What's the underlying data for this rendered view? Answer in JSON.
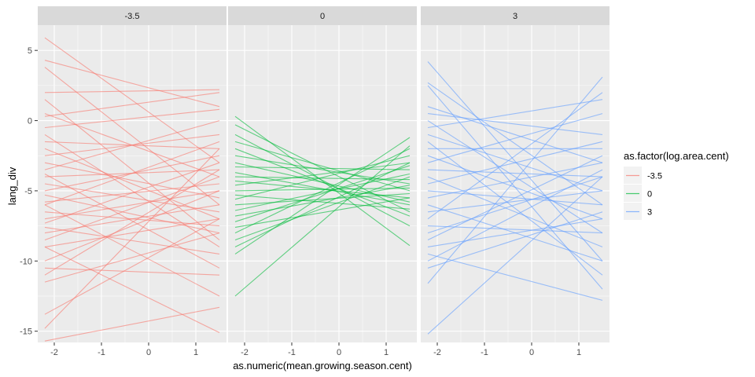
{
  "chart_data": {
    "type": "line",
    "xlabel": "as.numeric(mean.growing.season.cent)",
    "ylabel": "lang_div",
    "xlim": [
      -2.35,
      1.65
    ],
    "ylim": [
      -15.8,
      6.8
    ],
    "x_ticks": [
      {
        "value": -2,
        "label": "-2"
      },
      {
        "value": -1,
        "label": "-1"
      },
      {
        "value": 0,
        "label": "0"
      },
      {
        "value": 1,
        "label": "1"
      }
    ],
    "y_ticks": [
      {
        "value": 5,
        "label": "5"
      },
      {
        "value": 0,
        "label": "0"
      },
      {
        "value": -5,
        "label": "-5"
      },
      {
        "value": -10,
        "label": "-10"
      },
      {
        "value": -15,
        "label": "-15"
      }
    ],
    "x_range_of_lines": [
      -2.2,
      1.5
    ],
    "grid": true,
    "facets": [
      {
        "strip": "-3.5",
        "color": "#F8766D"
      },
      {
        "strip": "0",
        "color": "#00BA38"
      },
      {
        "strip": "3",
        "color": "#619CFF"
      }
    ],
    "legend": {
      "title": "as.factor(log.area.cent)",
      "position": "right",
      "entries": [
        {
          "label": "-3.5",
          "color": "#F8766D"
        },
        {
          "label": "0",
          "color": "#00BA38"
        },
        {
          "label": "3",
          "color": "#619CFF"
        }
      ]
    },
    "series": [
      {
        "facet": 0,
        "x": [
          -2.2,
          1.5
        ],
        "y": [
          5.9,
          -3.0
        ]
      },
      {
        "facet": 0,
        "x": [
          -2.2,
          1.5
        ],
        "y": [
          4.3,
          1.0
        ]
      },
      {
        "facet": 0,
        "x": [
          -2.2,
          1.5
        ],
        "y": [
          3.8,
          -6.0
        ]
      },
      {
        "facet": 0,
        "x": [
          -2.2,
          1.5
        ],
        "y": [
          2.0,
          2.2
        ]
      },
      {
        "facet": 0,
        "x": [
          -2.2,
          1.5
        ],
        "y": [
          1.5,
          -8.5
        ]
      },
      {
        "facet": 0,
        "x": [
          -2.2,
          1.5
        ],
        "y": [
          0.5,
          -4.0
        ]
      },
      {
        "facet": 0,
        "x": [
          -2.2,
          1.5
        ],
        "y": [
          0.3,
          2.0
        ]
      },
      {
        "facet": 0,
        "x": [
          -2.2,
          1.5
        ],
        "y": [
          -0.5,
          0.8
        ]
      },
      {
        "facet": 0,
        "x": [
          -2.2,
          1.5
        ],
        "y": [
          -1.0,
          -9.0
        ]
      },
      {
        "facet": 0,
        "x": [
          -2.2,
          1.5
        ],
        "y": [
          -1.5,
          -2.0
        ]
      },
      {
        "facet": 0,
        "x": [
          -2.2,
          1.5
        ],
        "y": [
          -2.0,
          -7.0
        ]
      },
      {
        "facet": 0,
        "x": [
          -2.2,
          1.5
        ],
        "y": [
          -2.5,
          -1.0
        ]
      },
      {
        "facet": 0,
        "x": [
          -2.2,
          1.5
        ],
        "y": [
          -3.0,
          -5.5
        ]
      },
      {
        "facet": 0,
        "x": [
          -2.2,
          1.5
        ],
        "y": [
          -3.5,
          0.0
        ]
      },
      {
        "facet": 0,
        "x": [
          -2.2,
          1.5
        ],
        "y": [
          -3.8,
          -10.5
        ]
      },
      {
        "facet": 0,
        "x": [
          -2.2,
          1.5
        ],
        "y": [
          -4.0,
          -3.5
        ]
      },
      {
        "facet": 0,
        "x": [
          -2.2,
          1.5
        ],
        "y": [
          -4.5,
          -6.5
        ]
      },
      {
        "facet": 0,
        "x": [
          -2.2,
          1.5
        ],
        "y": [
          -5.0,
          -2.5
        ]
      },
      {
        "facet": 0,
        "x": [
          -2.2,
          1.5
        ],
        "y": [
          -5.3,
          -8.0
        ]
      },
      {
        "facet": 0,
        "x": [
          -2.2,
          1.5
        ],
        "y": [
          -5.8,
          -4.5
        ]
      },
      {
        "facet": 0,
        "x": [
          -2.2,
          1.5
        ],
        "y": [
          -6.0,
          -1.5
        ]
      },
      {
        "facet": 0,
        "x": [
          -2.2,
          1.5
        ],
        "y": [
          -6.5,
          -7.5
        ]
      },
      {
        "facet": 0,
        "x": [
          -2.2,
          1.5
        ],
        "y": [
          -7.0,
          -5.0
        ]
      },
      {
        "facet": 0,
        "x": [
          -2.2,
          1.5
        ],
        "y": [
          -7.3,
          -3.0
        ]
      },
      {
        "facet": 0,
        "x": [
          -2.2,
          1.5
        ],
        "y": [
          -7.6,
          -9.5
        ]
      },
      {
        "facet": 0,
        "x": [
          -2.2,
          1.5
        ],
        "y": [
          -8.0,
          -6.0
        ]
      },
      {
        "facet": 0,
        "x": [
          -2.2,
          1.5
        ],
        "y": [
          -8.5,
          -4.0
        ]
      },
      {
        "facet": 0,
        "x": [
          -2.2,
          1.5
        ],
        "y": [
          -9.0,
          -7.0
        ]
      },
      {
        "facet": 0,
        "x": [
          -2.2,
          1.5
        ],
        "y": [
          -10.0,
          -5.0
        ]
      },
      {
        "facet": 0,
        "x": [
          -2.2,
          1.5
        ],
        "y": [
          -10.5,
          -11.0
        ]
      },
      {
        "facet": 0,
        "x": [
          -2.2,
          1.5
        ],
        "y": [
          -11.0,
          -3.5
        ]
      },
      {
        "facet": 0,
        "x": [
          -2.2,
          1.5
        ],
        "y": [
          -11.5,
          -8.0
        ]
      },
      {
        "facet": 0,
        "x": [
          -2.2,
          1.5
        ],
        "y": [
          -13.8,
          -7.0
        ]
      },
      {
        "facet": 0,
        "x": [
          -2.2,
          1.5
        ],
        "y": [
          -14.8,
          -2.0
        ]
      },
      {
        "facet": 0,
        "x": [
          -2.2,
          1.5
        ],
        "y": [
          -15.7,
          -13.3
        ]
      },
      {
        "facet": 0,
        "x": [
          -2.2,
          1.5
        ],
        "y": [
          -9.0,
          -15.1
        ]
      },
      {
        "facet": 0,
        "x": [
          -2.2,
          1.5
        ],
        "y": [
          -6.0,
          -12.5
        ]
      },
      {
        "facet": 1,
        "x": [
          -2.2,
          1.5
        ],
        "y": [
          0.3,
          -8.9
        ]
      },
      {
        "facet": 1,
        "x": [
          -2.2,
          1.5
        ],
        "y": [
          -0.3,
          -6.5
        ]
      },
      {
        "facet": 1,
        "x": [
          -2.2,
          1.5
        ],
        "y": [
          -1.0,
          -7.5
        ]
      },
      {
        "facet": 1,
        "x": [
          -2.2,
          1.5
        ],
        "y": [
          -1.5,
          -5.0
        ]
      },
      {
        "facet": 1,
        "x": [
          -2.2,
          1.5
        ],
        "y": [
          -2.0,
          -6.8
        ]
      },
      {
        "facet": 1,
        "x": [
          -2.2,
          1.5
        ],
        "y": [
          -2.5,
          -4.5
        ]
      },
      {
        "facet": 1,
        "x": [
          -2.2,
          1.5
        ],
        "y": [
          -3.0,
          -5.8
        ]
      },
      {
        "facet": 1,
        "x": [
          -2.2,
          1.5
        ],
        "y": [
          -3.3,
          -3.5
        ]
      },
      {
        "facet": 1,
        "x": [
          -2.2,
          1.5
        ],
        "y": [
          -3.7,
          -6.0
        ]
      },
      {
        "facet": 1,
        "x": [
          -2.2,
          1.5
        ],
        "y": [
          -4.0,
          -4.2
        ]
      },
      {
        "facet": 1,
        "x": [
          -2.2,
          1.5
        ],
        "y": [
          -4.3,
          -5.5
        ]
      },
      {
        "facet": 1,
        "x": [
          -2.2,
          1.5
        ],
        "y": [
          -4.6,
          -3.0
        ]
      },
      {
        "facet": 1,
        "x": [
          -2.2,
          1.5
        ],
        "y": [
          -5.0,
          -4.8
        ]
      },
      {
        "facet": 1,
        "x": [
          -2.2,
          1.5
        ],
        "y": [
          -5.3,
          -6.3
        ]
      },
      {
        "facet": 1,
        "x": [
          -2.2,
          1.5
        ],
        "y": [
          -5.6,
          -2.5
        ]
      },
      {
        "facet": 1,
        "x": [
          -2.2,
          1.5
        ],
        "y": [
          -6.0,
          -5.2
        ]
      },
      {
        "facet": 1,
        "x": [
          -2.2,
          1.5
        ],
        "y": [
          -6.4,
          -3.8
        ]
      },
      {
        "facet": 1,
        "x": [
          -2.2,
          1.5
        ],
        "y": [
          -6.8,
          -4.6
        ]
      },
      {
        "facet": 1,
        "x": [
          -2.2,
          1.5
        ],
        "y": [
          -7.2,
          -3.2
        ]
      },
      {
        "facet": 1,
        "x": [
          -2.2,
          1.5
        ],
        "y": [
          -7.6,
          -5.5
        ]
      },
      {
        "facet": 1,
        "x": [
          -2.2,
          1.5
        ],
        "y": [
          -8.0,
          -2.0
        ]
      },
      {
        "facet": 1,
        "x": [
          -2.2,
          1.5
        ],
        "y": [
          -8.5,
          -4.0
        ]
      },
      {
        "facet": 1,
        "x": [
          -2.2,
          1.5
        ],
        "y": [
          -9.0,
          -3.0
        ]
      },
      {
        "facet": 1,
        "x": [
          -2.2,
          1.5
        ],
        "y": [
          -9.5,
          -1.2
        ]
      },
      {
        "facet": 1,
        "x": [
          -2.2,
          1.5
        ],
        "y": [
          -12.5,
          -1.8
        ]
      },
      {
        "facet": 2,
        "x": [
          -2.2,
          1.5
        ],
        "y": [
          4.2,
          -10.0
        ]
      },
      {
        "facet": 2,
        "x": [
          -2.2,
          1.5
        ],
        "y": [
          2.7,
          -6.0
        ]
      },
      {
        "facet": 2,
        "x": [
          -2.2,
          1.5
        ],
        "y": [
          2.5,
          -12.0
        ]
      },
      {
        "facet": 2,
        "x": [
          -2.2,
          1.5
        ],
        "y": [
          1.0,
          -3.0
        ]
      },
      {
        "facet": 2,
        "x": [
          -2.2,
          1.5
        ],
        "y": [
          0.5,
          -1.0
        ]
      },
      {
        "facet": 2,
        "x": [
          -2.2,
          1.5
        ],
        "y": [
          0.0,
          -8.0
        ]
      },
      {
        "facet": 2,
        "x": [
          -2.2,
          1.5
        ],
        "y": [
          -0.5,
          1.5
        ]
      },
      {
        "facet": 2,
        "x": [
          -2.2,
          1.5
        ],
        "y": [
          -1.0,
          -5.0
        ]
      },
      {
        "facet": 2,
        "x": [
          -2.2,
          1.5
        ],
        "y": [
          -1.5,
          -11.0
        ]
      },
      {
        "facet": 2,
        "x": [
          -2.2,
          1.5
        ],
        "y": [
          -2.0,
          -2.0
        ]
      },
      {
        "facet": 2,
        "x": [
          -2.2,
          1.5
        ],
        "y": [
          -2.5,
          -7.0
        ]
      },
      {
        "facet": 2,
        "x": [
          -2.2,
          1.5
        ],
        "y": [
          -3.0,
          0.5
        ]
      },
      {
        "facet": 2,
        "x": [
          -2.2,
          1.5
        ],
        "y": [
          -3.5,
          -4.0
        ]
      },
      {
        "facet": 2,
        "x": [
          -2.2,
          1.5
        ],
        "y": [
          -4.0,
          -9.0
        ]
      },
      {
        "facet": 2,
        "x": [
          -2.2,
          1.5
        ],
        "y": [
          -4.5,
          -1.5
        ]
      },
      {
        "facet": 2,
        "x": [
          -2.2,
          1.5
        ],
        "y": [
          -5.0,
          -6.0
        ]
      },
      {
        "facet": 2,
        "x": [
          -2.2,
          1.5
        ],
        "y": [
          -5.5,
          -3.0
        ]
      },
      {
        "facet": 2,
        "x": [
          -2.2,
          1.5
        ],
        "y": [
          -6.0,
          -10.0
        ]
      },
      {
        "facet": 2,
        "x": [
          -2.2,
          1.5
        ],
        "y": [
          -6.5,
          -5.0
        ]
      },
      {
        "facet": 2,
        "x": [
          -2.2,
          1.5
        ],
        "y": [
          -7.0,
          2.0
        ]
      },
      {
        "facet": 2,
        "x": [
          -2.2,
          1.5
        ],
        "y": [
          -7.5,
          -8.0
        ]
      },
      {
        "facet": 2,
        "x": [
          -2.2,
          1.5
        ],
        "y": [
          -8.0,
          -4.0
        ]
      },
      {
        "facet": 2,
        "x": [
          -2.2,
          1.5
        ],
        "y": [
          -8.5,
          -2.5
        ]
      },
      {
        "facet": 2,
        "x": [
          -2.2,
          1.5
        ],
        "y": [
          -9.0,
          -7.0
        ]
      },
      {
        "facet": 2,
        "x": [
          -2.2,
          1.5
        ],
        "y": [
          -9.5,
          -12.8
        ]
      },
      {
        "facet": 2,
        "x": [
          -2.2,
          1.5
        ],
        "y": [
          -10.0,
          -3.5
        ]
      },
      {
        "facet": 2,
        "x": [
          -2.2,
          1.5
        ],
        "y": [
          -10.5,
          -6.5
        ]
      },
      {
        "facet": 2,
        "x": [
          -2.2,
          1.5
        ],
        "y": [
          -11.6,
          3.1
        ]
      },
      {
        "facet": 2,
        "x": [
          -2.2,
          1.5
        ],
        "y": [
          -15.2,
          -4.0
        ]
      }
    ]
  }
}
